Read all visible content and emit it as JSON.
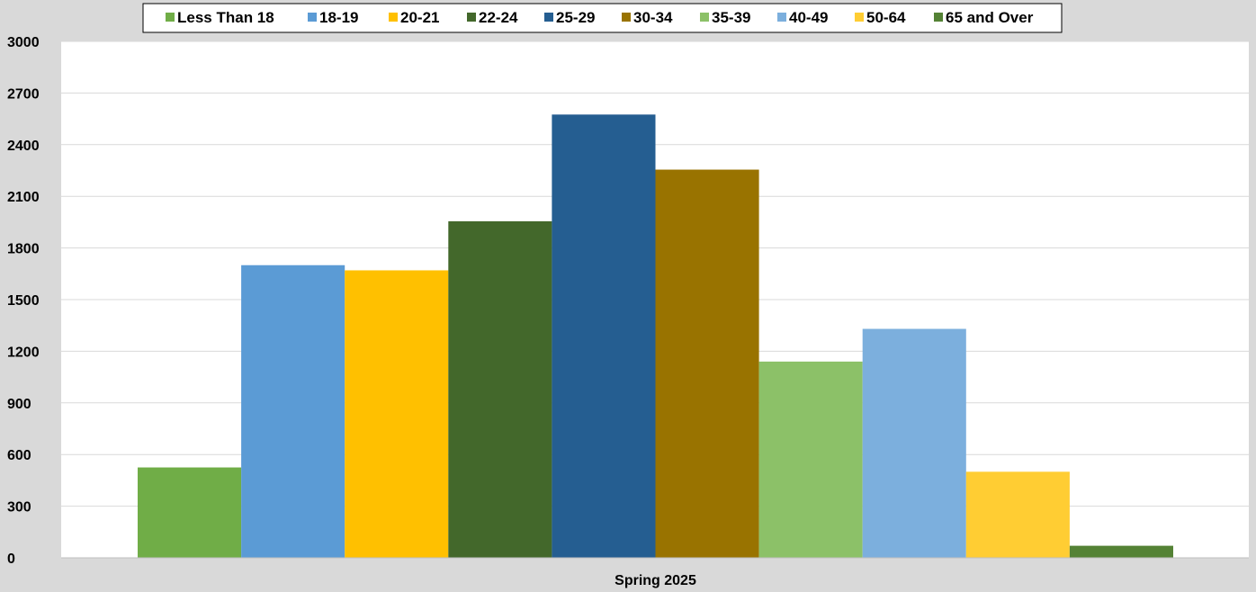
{
  "chart_data": {
    "type": "bar",
    "categories": [
      "Spring 2025"
    ],
    "series": [
      {
        "name": "Less Than 18",
        "values": [
          525
        ],
        "color": "#70ad47"
      },
      {
        "name": "18-19",
        "values": [
          1700
        ],
        "color": "#5b9bd5"
      },
      {
        "name": "20-21",
        "values": [
          1670
        ],
        "color": "#ffc000"
      },
      {
        "name": "22-24",
        "values": [
          1955
        ],
        "color": "#43682b"
      },
      {
        "name": "25-29",
        "values": [
          2575
        ],
        "color": "#255e91"
      },
      {
        "name": "30-34",
        "values": [
          2255
        ],
        "color": "#997300"
      },
      {
        "name": "35-39",
        "values": [
          1140
        ],
        "color": "#8cc168"
      },
      {
        "name": "40-49",
        "values": [
          1330
        ],
        "color": "#7cafdd"
      },
      {
        "name": "50-64",
        "values": [
          500
        ],
        "color": "#ffcd33"
      },
      {
        "name": "65 and Over",
        "values": [
          70
        ],
        "color": "#548235"
      }
    ],
    "title": "",
    "xlabel": "",
    "ylabel": "",
    "ylim": [
      0,
      3000
    ],
    "yticks": [
      "0",
      "300",
      "600",
      "900",
      "1200",
      "1500",
      "1800",
      "2100",
      "2400",
      "2700",
      "3000"
    ],
    "grid": true,
    "legend_position": "top"
  }
}
